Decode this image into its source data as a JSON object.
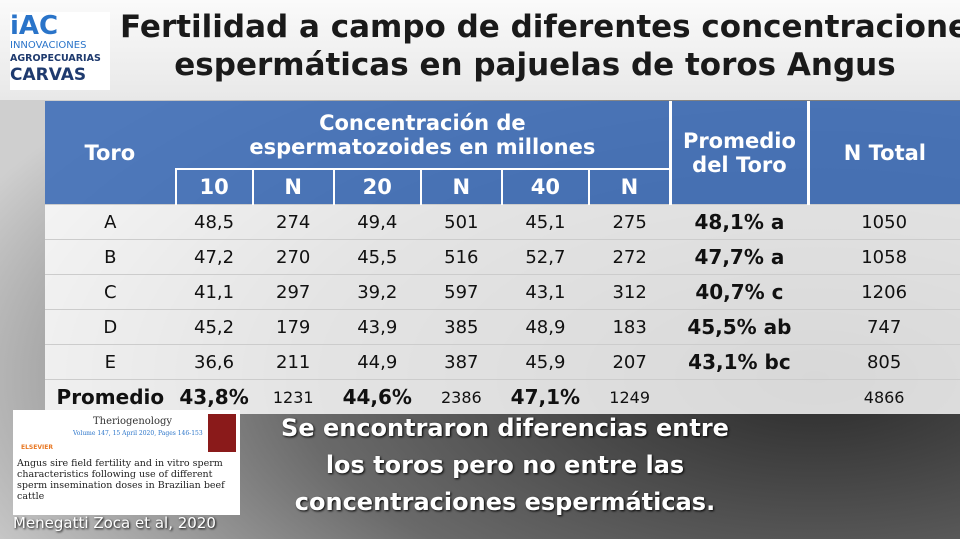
{
  "logo": {
    "mark": "iAC",
    "lines": [
      "INNOVACIONES",
      "AGROPECUARIAS"
    ],
    "brand": "CARVAS"
  },
  "title": [
    "Fertilidad a campo de diferentes concentraciones",
    "espermáticas en pajuelas de toros Angus"
  ],
  "table": {
    "header": {
      "toro": "Toro",
      "group": "Concentración de espermatozoides en millones",
      "sub": [
        "10",
        "N",
        "20",
        "N",
        "40",
        "N"
      ],
      "promedio": "Promedio del Toro",
      "total": "N Total"
    },
    "rows": [
      [
        "A",
        "48,5",
        "274",
        "49,4",
        "501",
        "45,1",
        "275",
        "48,1% a",
        "1050"
      ],
      [
        "B",
        "47,2",
        "270",
        "45,5",
        "516",
        "52,7",
        "272",
        "47,7% a",
        "1058"
      ],
      [
        "C",
        "41,1",
        "297",
        "39,2",
        "597",
        "43,1",
        "312",
        "40,7% c",
        "1206"
      ],
      [
        "D",
        "45,2",
        "179",
        "43,9",
        "385",
        "48,9",
        "183",
        "45,5% ab",
        "747"
      ],
      [
        "E",
        "36,6",
        "211",
        "44,9",
        "387",
        "45,9",
        "207",
        "43,1% bc",
        "805"
      ]
    ],
    "footer": {
      "label": "Promedio",
      "values": [
        "43,8%",
        "1231",
        "44,6%",
        "2386",
        "47,1%",
        "1249"
      ],
      "total": "4866"
    }
  },
  "conclusion": [
    "Se encontraron diferencias entre",
    "los toros pero no entre las",
    "concentraciones espermáticas."
  ],
  "citation": {
    "journal": "Theriogenology",
    "volume": "Volume 147, 15 April 2020, Pages 146-153",
    "publisher": "ELSEVIER",
    "article": "Angus sire field fertility and in vitro sperm characteristics following use of different sperm insemination doses in Brazilian beef cattle",
    "credit": "Menegatti Zoca et al, 2020"
  }
}
